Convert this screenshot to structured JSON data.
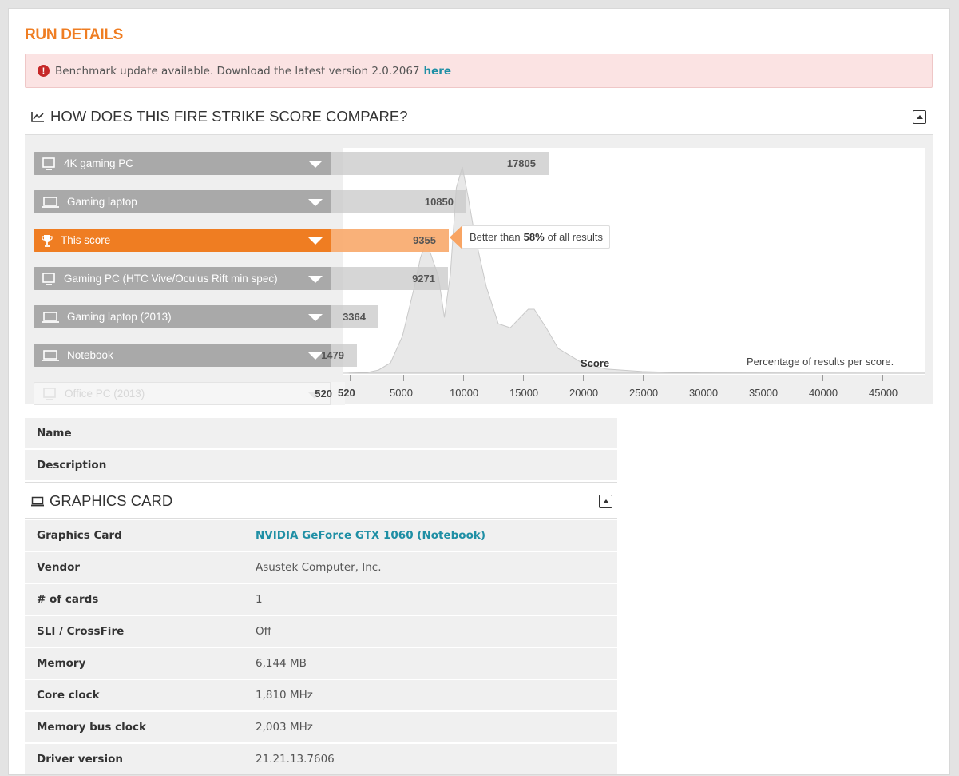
{
  "run_details": {
    "title": "RUN DETAILS",
    "alert_text": "Benchmark update available. Download the latest version 2.0.2067",
    "alert_link": "here"
  },
  "compare": {
    "title": "HOW DOES THIS FIRE STRIKE SCORE COMPARE?",
    "rows": [
      {
        "label": "4K gaming PC",
        "score": "17805",
        "icon": "desktop-icon"
      },
      {
        "label": "Gaming laptop",
        "score": "10850",
        "icon": "laptop-icon"
      },
      {
        "label": "This score",
        "score": "9355",
        "icon": "trophy-icon"
      },
      {
        "label": "Gaming PC (HTC Vive/Oculus Rift min spec)",
        "score": "9271",
        "icon": "desktop-icon"
      },
      {
        "label": "Gaming laptop (2013)",
        "score": "3364",
        "icon": "laptop-icon"
      },
      {
        "label": "Notebook",
        "score": "1479",
        "icon": "laptop-icon"
      },
      {
        "label": "Office PC (2013)",
        "score": "520",
        "icon": "desktop-icon"
      }
    ],
    "tooltip": {
      "prefix": "Better than",
      "percent": "58%",
      "suffix": "of all results"
    },
    "axis_title": "Score",
    "y_note": "Percentage of results per score."
  },
  "chart_data": {
    "type": "area",
    "x": [
      0,
      2000,
      3000,
      4000,
      5000,
      6000,
      6500,
      7000,
      8000,
      8500,
      9000,
      9500,
      10000,
      10500,
      11000,
      12000,
      13000,
      14000,
      14500,
      15500,
      16000,
      17000,
      18000,
      20000,
      22000,
      25000,
      27500,
      30000,
      40000,
      50000
    ],
    "y": [
      0.0,
      0.3,
      1.5,
      5.0,
      18.0,
      42.0,
      56.0,
      64.0,
      47.0,
      27.0,
      48.0,
      90.0,
      100.0,
      85.0,
      68.0,
      42.0,
      24.0,
      22.0,
      25.0,
      31.0,
      31.0,
      22.0,
      12.0,
      5.0,
      2.0,
      0.8,
      0.4,
      0.15,
      0.02,
      0.0
    ],
    "xticks": [
      "520",
      "5000",
      "10000",
      "15000",
      "20000",
      "25000",
      "30000",
      "35000",
      "40000",
      "45000"
    ],
    "tick_values": [
      520,
      5000,
      10000,
      15000,
      20000,
      25000,
      30000,
      35000,
      40000,
      45000
    ],
    "xlim": [
      0,
      50000
    ],
    "xlabel": "Score",
    "ylabel": "Percentage of results per score.",
    "highlight": 9355
  },
  "graphics": {
    "title": "GRAPHICS CARD",
    "rows": [
      {
        "key": "Graphics Card",
        "value": "NVIDIA GeForce GTX 1060 (Notebook)"
      },
      {
        "key": "Vendor",
        "value": "Asustek Computer, Inc."
      },
      {
        "key": "# of cards",
        "value": "1"
      },
      {
        "key": "SLI / CrossFire",
        "value": "Off"
      },
      {
        "key": "Memory",
        "value": "6,144 MB"
      },
      {
        "key": "Core clock",
        "value": "1,810 MHz"
      },
      {
        "key": "Memory bus clock",
        "value": "2,003 MHz"
      },
      {
        "key": "Driver version",
        "value": "21.21.13.7606"
      }
    ]
  },
  "details": {
    "name_label": "Name",
    "description_label": "Description"
  },
  "colors": {
    "accent": "#ef7d22",
    "link": "#1f8fa5",
    "alert_bg": "#fbe3e3",
    "alert_icon": "#c62828"
  }
}
